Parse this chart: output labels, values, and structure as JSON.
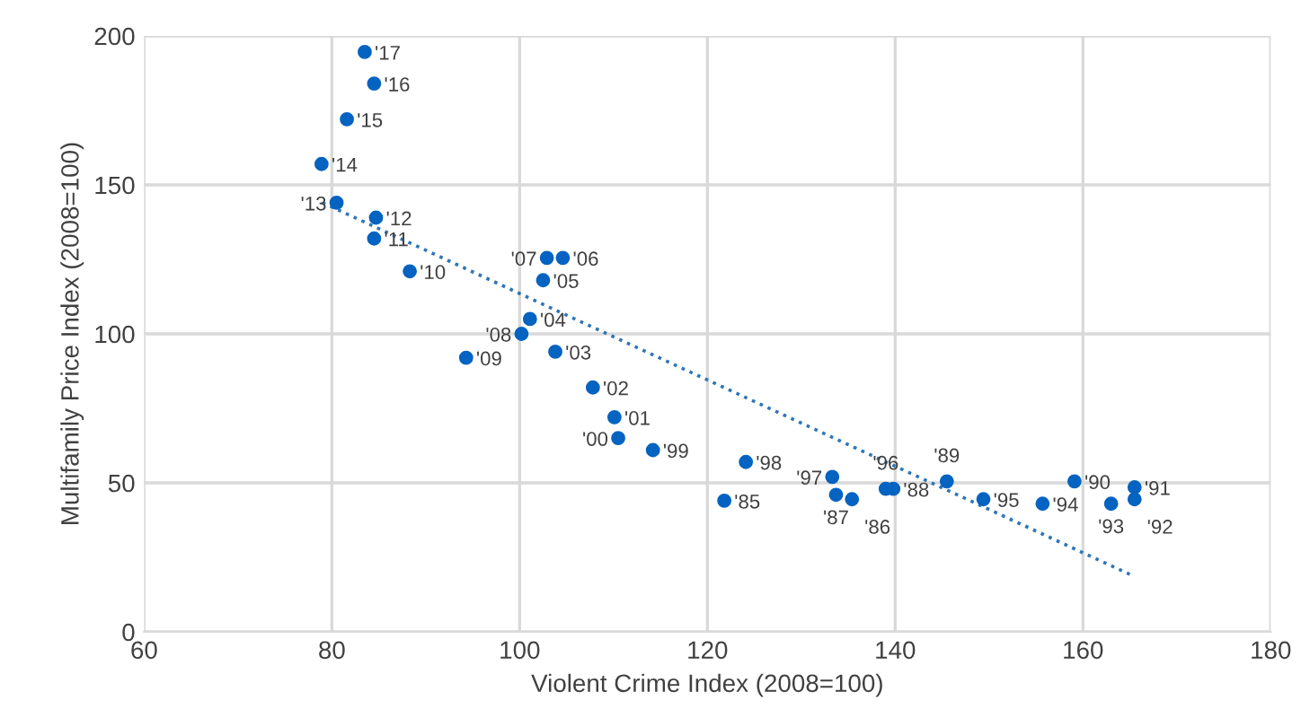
{
  "chart_data": {
    "type": "scatter",
    "xlabel": "Violent Crime Index (2008=100)",
    "ylabel": "Multifamily Price Index (2008=100)",
    "xlim": [
      60,
      180
    ],
    "xticks": [
      60,
      80,
      100,
      120,
      140,
      160,
      180
    ],
    "ylim": [
      0,
      200
    ],
    "yticks": [
      0,
      50,
      100,
      150,
      200
    ],
    "grid": true,
    "marker": "circle",
    "series": [
      {
        "color": "#0563c1",
        "x": [
          83.5,
          84.5,
          81.6,
          78.9,
          80.5,
          84.7,
          84.5,
          88.3,
          102.9,
          104.6,
          102.5,
          101.1,
          100.2,
          94.3,
          103.8,
          107.8,
          110.1,
          110.5,
          114.2,
          124.1,
          121.8,
          133.3,
          133.7,
          135.4,
          139.0,
          139.8,
          145.5,
          149.4,
          155.7,
          159.1,
          165.5,
          163.0,
          165.5
        ],
        "values": [
          194.6,
          184,
          172,
          157,
          144,
          139,
          132,
          121,
          125.5,
          125.5,
          118,
          105,
          100,
          92,
          94,
          82,
          72,
          65,
          61,
          57,
          44,
          52,
          46,
          44.5,
          48,
          48,
          50.5,
          44.5,
          43,
          50.5,
          48.5,
          43,
          44.5
        ]
      },
      {
        "type": "line",
        "color": "#2e75b6",
        "line_style": "dotted",
        "marker": "none",
        "x": [
          79,
          165.5
        ],
        "values": [
          144,
          18.6
        ]
      }
    ],
    "annotations": [
      {
        "text": "'17",
        "x": 83.5,
        "y": 194.6
      },
      {
        "text": "'16",
        "x": 84.5,
        "y": 184
      },
      {
        "text": "'15",
        "x": 81.6,
        "y": 172
      },
      {
        "text": "'14",
        "x": 78.9,
        "y": 157
      },
      {
        "text": "'13",
        "x": 80.5,
        "y": 144
      },
      {
        "text": "'12",
        "x": 84.7,
        "y": 139
      },
      {
        "text": "'11",
        "x": 84.5,
        "y": 132
      },
      {
        "text": "'10",
        "x": 88.3,
        "y": 121
      },
      {
        "text": "'07",
        "x": 102.9,
        "y": 125.5
      },
      {
        "text": "'06",
        "x": 104.6,
        "y": 125.5
      },
      {
        "text": "'05",
        "x": 102.5,
        "y": 118
      },
      {
        "text": "'04",
        "x": 101.1,
        "y": 105
      },
      {
        "text": "'08",
        "x": 100.2,
        "y": 100
      },
      {
        "text": "'09",
        "x": 94.3,
        "y": 92
      },
      {
        "text": "'03",
        "x": 103.8,
        "y": 94
      },
      {
        "text": "'02",
        "x": 107.8,
        "y": 82
      },
      {
        "text": "'01",
        "x": 110.1,
        "y": 72
      },
      {
        "text": "'00",
        "x": 110.5,
        "y": 65
      },
      {
        "text": "'99",
        "x": 114.2,
        "y": 61
      },
      {
        "text": "'98",
        "x": 124.1,
        "y": 57
      },
      {
        "text": "'85",
        "x": 121.8,
        "y": 44
      },
      {
        "text": "'97",
        "x": 133.3,
        "y": 52
      },
      {
        "text": "'87",
        "x": 133.7,
        "y": 46
      },
      {
        "text": "'86",
        "x": 135.4,
        "y": 44.5
      },
      {
        "text": "'96",
        "x": 139.0,
        "y": 48
      },
      {
        "text": "'88",
        "x": 139.8,
        "y": 48
      },
      {
        "text": "'89",
        "x": 145.5,
        "y": 50.5
      },
      {
        "text": "'95",
        "x": 149.4,
        "y": 44.5
      },
      {
        "text": "'94",
        "x": 155.7,
        "y": 43
      },
      {
        "text": "'90",
        "x": 159.1,
        "y": 50.5
      },
      {
        "text": "'91",
        "x": 165.5,
        "y": 48.5
      },
      {
        "text": "'93",
        "x": 163.0,
        "y": 43
      },
      {
        "text": "'92",
        "x": 165.5,
        "y": 44.5
      }
    ]
  }
}
